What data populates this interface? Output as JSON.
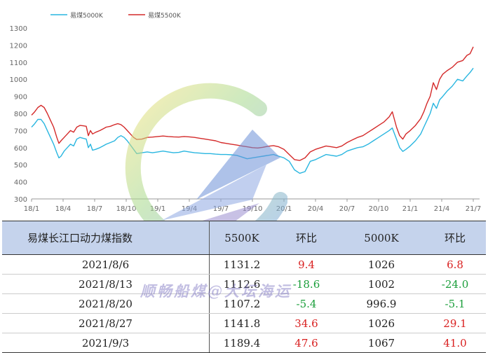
{
  "chart_data": {
    "type": "line",
    "legend_position": "top-left",
    "ylim": [
      300,
      1300
    ],
    "yticks": [
      300,
      400,
      500,
      600,
      700,
      800,
      900,
      1000,
      1100,
      1200,
      1300
    ],
    "xticks": [
      "18/1",
      "18/4",
      "18/7",
      "18/10",
      "19/1",
      "19/4",
      "19/7",
      "19/10",
      "20/1",
      "20/4",
      "20/7",
      "20/10",
      "21/1",
      "21/4",
      "21/7"
    ],
    "grid": false,
    "series": [
      {
        "name": "易煤5000K",
        "color": "#29b6e0",
        "points": [
          [
            0,
            720
          ],
          [
            0.3,
            740
          ],
          [
            0.6,
            765
          ],
          [
            0.9,
            765
          ],
          [
            1.2,
            740
          ],
          [
            1.5,
            700
          ],
          [
            1.8,
            660
          ],
          [
            2.1,
            620
          ],
          [
            2.4,
            570
          ],
          [
            2.6,
            540
          ],
          [
            2.8,
            550
          ],
          [
            3.1,
            580
          ],
          [
            3.4,
            600
          ],
          [
            3.7,
            620
          ],
          [
            4,
            610
          ],
          [
            4.3,
            650
          ],
          [
            4.6,
            660
          ],
          [
            4.9,
            655
          ],
          [
            5.2,
            650
          ],
          [
            5.4,
            600
          ],
          [
            5.6,
            620
          ],
          [
            5.8,
            585
          ],
          [
            6.1,
            590
          ],
          [
            6.5,
            600
          ],
          [
            6.8,
            610
          ],
          [
            7.1,
            620
          ],
          [
            7.5,
            630
          ],
          [
            7.9,
            640
          ],
          [
            8.2,
            660
          ],
          [
            8.5,
            670
          ],
          [
            8.8,
            660
          ],
          [
            9.1,
            640
          ],
          [
            9.4,
            615
          ],
          [
            9.7,
            590
          ],
          [
            10,
            565
          ],
          [
            10.5,
            570
          ],
          [
            11,
            575
          ],
          [
            11.5,
            570
          ],
          [
            12,
            575
          ],
          [
            12.5,
            580
          ],
          [
            13,
            575
          ],
          [
            13.5,
            570
          ],
          [
            14,
            572
          ],
          [
            14.5,
            580
          ],
          [
            15,
            575
          ],
          [
            15.5,
            570
          ],
          [
            16,
            568
          ],
          [
            16.5,
            565
          ],
          [
            17,
            565
          ],
          [
            17.5,
            562
          ],
          [
            18,
            560
          ],
          [
            18.5,
            560
          ],
          [
            19,
            558
          ],
          [
            19.5,
            555
          ],
          [
            20,
            545
          ],
          [
            20.5,
            535
          ],
          [
            21,
            540
          ],
          [
            21.5,
            545
          ],
          [
            22,
            550
          ],
          [
            22.5,
            555
          ],
          [
            23,
            560
          ],
          [
            23.5,
            550
          ],
          [
            24,
            540
          ],
          [
            24.5,
            520
          ],
          [
            25,
            470
          ],
          [
            25.5,
            450
          ],
          [
            26,
            460
          ],
          [
            26.5,
            520
          ],
          [
            27,
            530
          ],
          [
            27.5,
            545
          ],
          [
            28,
            560
          ],
          [
            28.5,
            555
          ],
          [
            29,
            550
          ],
          [
            29.5,
            560
          ],
          [
            30,
            580
          ],
          [
            30.5,
            590
          ],
          [
            31,
            600
          ],
          [
            31.5,
            605
          ],
          [
            32,
            620
          ],
          [
            32.5,
            640
          ],
          [
            33,
            660
          ],
          [
            33.5,
            680
          ],
          [
            34,
            700
          ],
          [
            34.3,
            715
          ],
          [
            34.7,
            650
          ],
          [
            35,
            600
          ],
          [
            35.3,
            578
          ],
          [
            35.6,
            590
          ],
          [
            36,
            610
          ],
          [
            36.5,
            640
          ],
          [
            37,
            680
          ],
          [
            37.3,
            720
          ],
          [
            37.6,
            760
          ],
          [
            37.9,
            800
          ],
          [
            38.2,
            860
          ],
          [
            38.5,
            830
          ],
          [
            38.8,
            880
          ],
          [
            39.1,
            900
          ],
          [
            39.5,
            930
          ],
          [
            40,
            960
          ],
          [
            40.5,
            1000
          ],
          [
            41,
            990
          ],
          [
            41.4,
            1020
          ],
          [
            41.7,
            1040
          ],
          [
            42,
            1065
          ]
        ]
      },
      {
        "name": "易煤5500K",
        "color": "#d42a2a",
        "points": [
          [
            0,
            790
          ],
          [
            0.3,
            810
          ],
          [
            0.6,
            835
          ],
          [
            0.9,
            848
          ],
          [
            1.2,
            835
          ],
          [
            1.5,
            800
          ],
          [
            1.8,
            760
          ],
          [
            2.1,
            720
          ],
          [
            2.4,
            660
          ],
          [
            2.6,
            625
          ],
          [
            2.8,
            640
          ],
          [
            3.1,
            660
          ],
          [
            3.4,
            680
          ],
          [
            3.7,
            700
          ],
          [
            4,
            690
          ],
          [
            4.3,
            720
          ],
          [
            4.6,
            730
          ],
          [
            4.9,
            728
          ],
          [
            5.2,
            725
          ],
          [
            5.4,
            670
          ],
          [
            5.6,
            700
          ],
          [
            5.8,
            680
          ],
          [
            6.1,
            690
          ],
          [
            6.5,
            700
          ],
          [
            6.8,
            710
          ],
          [
            7.1,
            720
          ],
          [
            7.5,
            725
          ],
          [
            7.9,
            735
          ],
          [
            8.2,
            740
          ],
          [
            8.5,
            735
          ],
          [
            8.8,
            720
          ],
          [
            9.1,
            700
          ],
          [
            9.4,
            680
          ],
          [
            9.7,
            660
          ],
          [
            10,
            648
          ],
          [
            10.5,
            650
          ],
          [
            11,
            660
          ],
          [
            11.5,
            662
          ],
          [
            12,
            665
          ],
          [
            12.5,
            668
          ],
          [
            13,
            665
          ],
          [
            13.5,
            663
          ],
          [
            14,
            662
          ],
          [
            14.5,
            665
          ],
          [
            15,
            663
          ],
          [
            15.5,
            660
          ],
          [
            16,
            655
          ],
          [
            16.5,
            650
          ],
          [
            17,
            645
          ],
          [
            17.5,
            640
          ],
          [
            18,
            630
          ],
          [
            18.5,
            625
          ],
          [
            19,
            620
          ],
          [
            19.5,
            615
          ],
          [
            20,
            610
          ],
          [
            20.5,
            605
          ],
          [
            21,
            600
          ],
          [
            21.5,
            598
          ],
          [
            22,
            602
          ],
          [
            22.5,
            608
          ],
          [
            23,
            612
          ],
          [
            23.5,
            605
          ],
          [
            24,
            590
          ],
          [
            24.5,
            560
          ],
          [
            25,
            530
          ],
          [
            25.5,
            525
          ],
          [
            26,
            540
          ],
          [
            26.5,
            575
          ],
          [
            27,
            590
          ],
          [
            27.5,
            600
          ],
          [
            28,
            610
          ],
          [
            28.5,
            605
          ],
          [
            29,
            600
          ],
          [
            29.5,
            610
          ],
          [
            30,
            630
          ],
          [
            30.5,
            645
          ],
          [
            31,
            660
          ],
          [
            31.5,
            670
          ],
          [
            32,
            690
          ],
          [
            32.5,
            710
          ],
          [
            33,
            730
          ],
          [
            33.5,
            750
          ],
          [
            34,
            780
          ],
          [
            34.3,
            810
          ],
          [
            34.7,
            720
          ],
          [
            35,
            670
          ],
          [
            35.3,
            650
          ],
          [
            35.6,
            680
          ],
          [
            36,
            700
          ],
          [
            36.5,
            730
          ],
          [
            37,
            770
          ],
          [
            37.3,
            810
          ],
          [
            37.6,
            860
          ],
          [
            37.9,
            900
          ],
          [
            38.2,
            980
          ],
          [
            38.5,
            940
          ],
          [
            38.8,
            1000
          ],
          [
            39.1,
            1030
          ],
          [
            39.5,
            1050
          ],
          [
            40,
            1070
          ],
          [
            40.5,
            1100
          ],
          [
            41,
            1110
          ],
          [
            41.4,
            1140
          ],
          [
            41.7,
            1150
          ],
          [
            42,
            1190
          ]
        ]
      }
    ]
  },
  "watermark": "顺畅船煤@大坛海运",
  "table": {
    "headers": [
      "易煤长江口动力煤指数",
      "5500K",
      "环比",
      "5000K",
      "环比"
    ],
    "rows": [
      [
        "2021/8/6",
        "1131.2",
        "9.4",
        "1026",
        "6.8"
      ],
      [
        "2021/8/13",
        "1112.6",
        "-18.6",
        "1002",
        "-24.0"
      ],
      [
        "2021/8/20",
        "1107.2",
        "-5.4",
        "996.9",
        "-5.1"
      ],
      [
        "2021/8/27",
        "1141.8",
        "34.6",
        "1026",
        "29.1"
      ],
      [
        "2021/9/3",
        "1189.4",
        "47.6",
        "1067",
        "41.0"
      ]
    ],
    "colors": {
      "positive": "#d92020",
      "negative": "#1a9e3a"
    }
  }
}
